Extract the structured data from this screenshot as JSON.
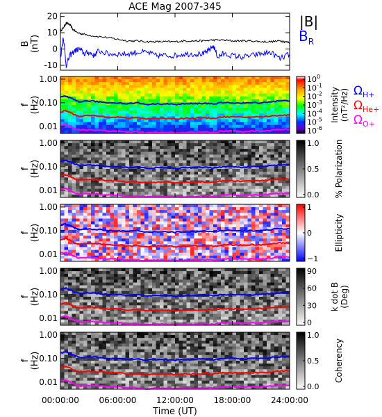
{
  "chart_data": {
    "type": "spectrogram",
    "title": "ACE Mag 2007-345",
    "xlabel": "Time (UT)",
    "x_ticks": [
      "00:00:00",
      "06:00:00",
      "12:00:00",
      "18:00:00",
      "24:00:00"
    ],
    "x_tick_hours": [
      0,
      6,
      12,
      18,
      24
    ],
    "xlim_hours": [
      0,
      24
    ],
    "top_panel": {
      "ylabel_line1": "B",
      "ylabel_line2": "(nT)",
      "ylim": [
        -13,
        22
      ],
      "y_ticks": [
        {
          "value": 20,
          "label": "20"
        },
        {
          "value": 10,
          "label": "10"
        },
        {
          "value": 0,
          "label": "0"
        },
        {
          "value": -10,
          "label": "-10"
        }
      ],
      "series": [
        {
          "name": "|B|",
          "color": "#000000",
          "points": [
            [
              0,
              11
            ],
            [
              0.3,
              13
            ],
            [
              0.6,
              16
            ],
            [
              1,
              15
            ],
            [
              1.3,
              12
            ],
            [
              1.8,
              10
            ],
            [
              2.5,
              9
            ],
            [
              3.5,
              8
            ],
            [
              5,
              7
            ],
            [
              6,
              6
            ],
            [
              7,
              5
            ],
            [
              8,
              5
            ],
            [
              9,
              4.5
            ],
            [
              10,
              4.5
            ],
            [
              11,
              4.5
            ],
            [
              12,
              4.5
            ],
            [
              13,
              5
            ],
            [
              14,
              5
            ],
            [
              15,
              5
            ],
            [
              16,
              5.5
            ],
            [
              17,
              5.5
            ],
            [
              18,
              5
            ],
            [
              19,
              5
            ],
            [
              20,
              5
            ],
            [
              21,
              4.5
            ],
            [
              22,
              4.5
            ],
            [
              23,
              5
            ],
            [
              23.5,
              4.5
            ],
            [
              24,
              4
            ]
          ]
        },
        {
          "name": "B_R",
          "label_main": "B",
          "label_sub": "R",
          "color": "#0000ff",
          "points": [
            [
              0,
              -6
            ],
            [
              0.3,
              8
            ],
            [
              0.6,
              -10
            ],
            [
              1,
              -4
            ],
            [
              1.5,
              -1
            ],
            [
              2,
              0
            ],
            [
              2.5,
              -3
            ],
            [
              3,
              -2
            ],
            [
              3.5,
              -4
            ],
            [
              4,
              -1
            ],
            [
              5,
              -3
            ],
            [
              6,
              -3
            ],
            [
              7,
              -3
            ],
            [
              8,
              -2
            ],
            [
              9,
              -2
            ],
            [
              10,
              -4
            ],
            [
              11,
              -4
            ],
            [
              12,
              -4
            ],
            [
              13,
              -3
            ],
            [
              14,
              -3
            ],
            [
              15,
              -3
            ],
            [
              15.5,
              -1
            ],
            [
              16,
              2
            ],
            [
              16.5,
              -5
            ],
            [
              17,
              -3
            ],
            [
              18,
              -4
            ],
            [
              19,
              -5
            ],
            [
              20,
              -4
            ],
            [
              21,
              -3
            ],
            [
              22,
              -2
            ],
            [
              23,
              -6
            ],
            [
              24,
              -3
            ]
          ]
        }
      ]
    },
    "freq_axis": {
      "ylabel_line1": "f",
      "ylabel_line2": "(Hz)",
      "ylim": [
        0.005,
        1.3
      ],
      "scale": "log",
      "y_ticks": [
        {
          "value": 1.0,
          "label": "1.00"
        },
        {
          "value": 0.1,
          "label": "0.10"
        },
        {
          "value": 0.01,
          "label": "0.01"
        }
      ]
    },
    "gyro_lines": [
      {
        "name": "Ω_H+",
        "symbol": "Ω",
        "sub": "H+",
        "color": "#0000ff",
        "points": [
          [
            0,
            0.17
          ],
          [
            0.5,
            0.19
          ],
          [
            1,
            0.16
          ],
          [
            1.5,
            0.13
          ],
          [
            2,
            0.11
          ],
          [
            3,
            0.12
          ],
          [
            4,
            0.11
          ],
          [
            5,
            0.1
          ],
          [
            6,
            0.1
          ],
          [
            7,
            0.09
          ],
          [
            8,
            0.1
          ],
          [
            9,
            0.085
          ],
          [
            10,
            0.09
          ],
          [
            11,
            0.09
          ],
          [
            12,
            0.085
          ],
          [
            13,
            0.09
          ],
          [
            14,
            0.09
          ],
          [
            15,
            0.095
          ],
          [
            16,
            0.09
          ],
          [
            17,
            0.1
          ],
          [
            18,
            0.1
          ],
          [
            19,
            0.095
          ],
          [
            20,
            0.1
          ],
          [
            21,
            0.1
          ],
          [
            22,
            0.11
          ],
          [
            23,
            0.12
          ],
          [
            24,
            0.12
          ]
        ]
      },
      {
        "name": "Ω_He+",
        "symbol": "Ω",
        "sub": "He+",
        "color": "#ff0000",
        "points": [
          [
            0,
            0.04
          ],
          [
            0.5,
            0.045
          ],
          [
            1,
            0.04
          ],
          [
            1.5,
            0.03
          ],
          [
            2,
            0.027
          ],
          [
            3,
            0.029
          ],
          [
            4,
            0.027
          ],
          [
            5,
            0.025
          ],
          [
            6,
            0.025
          ],
          [
            7,
            0.022
          ],
          [
            8,
            0.023
          ],
          [
            9,
            0.021
          ],
          [
            10,
            0.022
          ],
          [
            11,
            0.022
          ],
          [
            12,
            0.021
          ],
          [
            13,
            0.022
          ],
          [
            14,
            0.022
          ],
          [
            15,
            0.023
          ],
          [
            16,
            0.022
          ],
          [
            17,
            0.025
          ],
          [
            18,
            0.025
          ],
          [
            19,
            0.024
          ],
          [
            20,
            0.025
          ],
          [
            21,
            0.025
          ],
          [
            22,
            0.027
          ],
          [
            23,
            0.03
          ],
          [
            24,
            0.03
          ]
        ]
      },
      {
        "name": "Ω_O+",
        "symbol": "Ω",
        "sub": "O+",
        "color": "#ff00ff",
        "points": [
          [
            0,
            0.011
          ],
          [
            0.5,
            0.012
          ],
          [
            1,
            0.01
          ],
          [
            1.5,
            0.008
          ],
          [
            2,
            0.0068
          ],
          [
            3,
            0.0072
          ],
          [
            4,
            0.0068
          ],
          [
            5,
            0.0063
          ],
          [
            6,
            0.0063
          ],
          [
            7,
            0.0056
          ],
          [
            8,
            0.0058
          ],
          [
            9,
            0.0053
          ],
          [
            10,
            0.0055
          ],
          [
            11,
            0.0055
          ],
          [
            12,
            0.0053
          ],
          [
            13,
            0.0055
          ],
          [
            14,
            0.0055
          ],
          [
            15,
            0.0058
          ],
          [
            16,
            0.0055
          ],
          [
            17,
            0.0063
          ],
          [
            18,
            0.0063
          ],
          [
            19,
            0.006
          ],
          [
            20,
            0.0063
          ],
          [
            21,
            0.0063
          ],
          [
            22,
            0.0068
          ],
          [
            23,
            0.0075
          ],
          [
            24,
            0.0075
          ]
        ]
      }
    ],
    "spectrogram_panels": [
      {
        "name": "intensity",
        "colormap": "rainbow",
        "colorbar_label_line1": "Intensity",
        "colorbar_label_line2": "(nT²/Hz)",
        "colorbar_ticks": [
          {
            "main": "10",
            "exp": "0",
            "frac": 0.05
          },
          {
            "main": "10",
            "exp": "-1",
            "frac": 0.2
          },
          {
            "main": "10",
            "exp": "-2",
            "frac": 0.35
          },
          {
            "main": "10",
            "exp": "-3",
            "frac": 0.5
          },
          {
            "main": "10",
            "exp": "-4",
            "frac": 0.65
          },
          {
            "main": "10",
            "exp": "-5",
            "frac": 0.8
          },
          {
            "main": "10",
            "exp": "-6",
            "frac": 0.95
          }
        ]
      },
      {
        "name": "polarization",
        "colormap": "gray",
        "colorbar_label_line1": "% Polarization",
        "colorbar_label_line2": "",
        "colorbar_ticks": [
          {
            "main": "1.0",
            "exp": "",
            "frac": 0.05
          },
          {
            "main": "0.5",
            "exp": "",
            "frac": 0.5
          },
          {
            "main": "0.0",
            "exp": "",
            "frac": 0.95
          }
        ]
      },
      {
        "name": "ellipticity",
        "colormap": "bwr",
        "colorbar_label_line1": "Ellipticity",
        "colorbar_label_line2": "",
        "colorbar_ticks": [
          {
            "main": "1",
            "exp": "",
            "frac": 0.05
          },
          {
            "main": "0",
            "exp": "",
            "frac": 0.5
          },
          {
            "main": "−1",
            "exp": "",
            "frac": 0.95
          }
        ]
      },
      {
        "name": "kdotb",
        "colormap": "gray",
        "colorbar_label_line1": "k dot B",
        "colorbar_label_line2": "(Deg)",
        "colorbar_ticks": [
          {
            "main": "90",
            "exp": "",
            "frac": 0.05
          },
          {
            "main": "60",
            "exp": "",
            "frac": 0.35
          },
          {
            "main": "30",
            "exp": "",
            "frac": 0.65
          },
          {
            "main": "0",
            "exp": "",
            "frac": 0.95
          }
        ]
      },
      {
        "name": "coherency",
        "colormap": "gray",
        "colorbar_label_line1": "Coherency",
        "colorbar_label_line2": "",
        "colorbar_ticks": [
          {
            "main": "1.0",
            "exp": "",
            "frac": 0.05
          },
          {
            "main": "0.5",
            "exp": "",
            "frac": 0.5
          },
          {
            "main": "0.0",
            "exp": "",
            "frac": 0.95
          }
        ]
      }
    ]
  }
}
